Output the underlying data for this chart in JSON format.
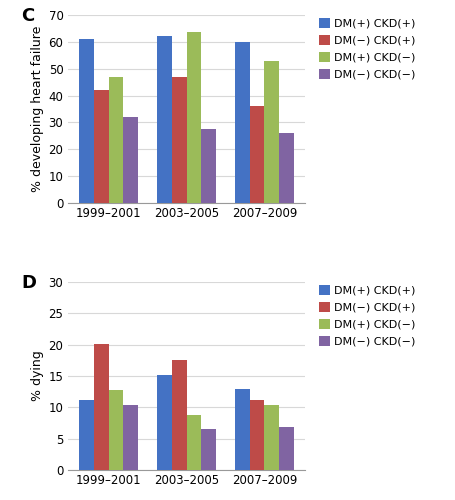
{
  "categories": [
    "1999–2001",
    "2003–2005",
    "2007–2009"
  ],
  "legend_labels": [
    "DM(+) CKD(+)",
    "DM(−) CKD(+)",
    "DM(+) CKD(−)",
    "DM(−) CKD(−)"
  ],
  "colors": [
    "#4472c4",
    "#be4b48",
    "#9bbb59",
    "#8064a2"
  ],
  "panel_C": {
    "label": "C",
    "ylabel": "% developing heart failure",
    "ylim": [
      0,
      70
    ],
    "yticks": [
      0,
      10,
      20,
      30,
      40,
      50,
      60,
      70
    ],
    "data": {
      "DM+ CKD+": [
        61,
        62,
        60
      ],
      "DM- CKD+": [
        42,
        47,
        36
      ],
      "DM+ CKD-": [
        47,
        63.5,
        53
      ],
      "DM- CKD-": [
        32,
        27.5,
        26
      ]
    }
  },
  "panel_D": {
    "label": "D",
    "ylabel": "% dying",
    "ylim": [
      0,
      30
    ],
    "yticks": [
      0,
      5,
      10,
      15,
      20,
      25,
      30
    ],
    "data": {
      "DM+ CKD+": [
        11.2,
        15.2,
        13.0
      ],
      "DM- CKD+": [
        20.1,
        17.5,
        11.2
      ],
      "DM+ CKD-": [
        12.8,
        8.8,
        10.4
      ],
      "DM- CKD-": [
        10.3,
        6.5,
        6.8
      ]
    }
  },
  "bar_width": 0.19,
  "background_color": "#ffffff",
  "plot_bg_color": "#f5f5f5",
  "grid_color": "#d8d8d8",
  "label_fontsize": 9,
  "tick_fontsize": 8.5,
  "legend_fontsize": 8,
  "panel_label_fontsize": 13
}
